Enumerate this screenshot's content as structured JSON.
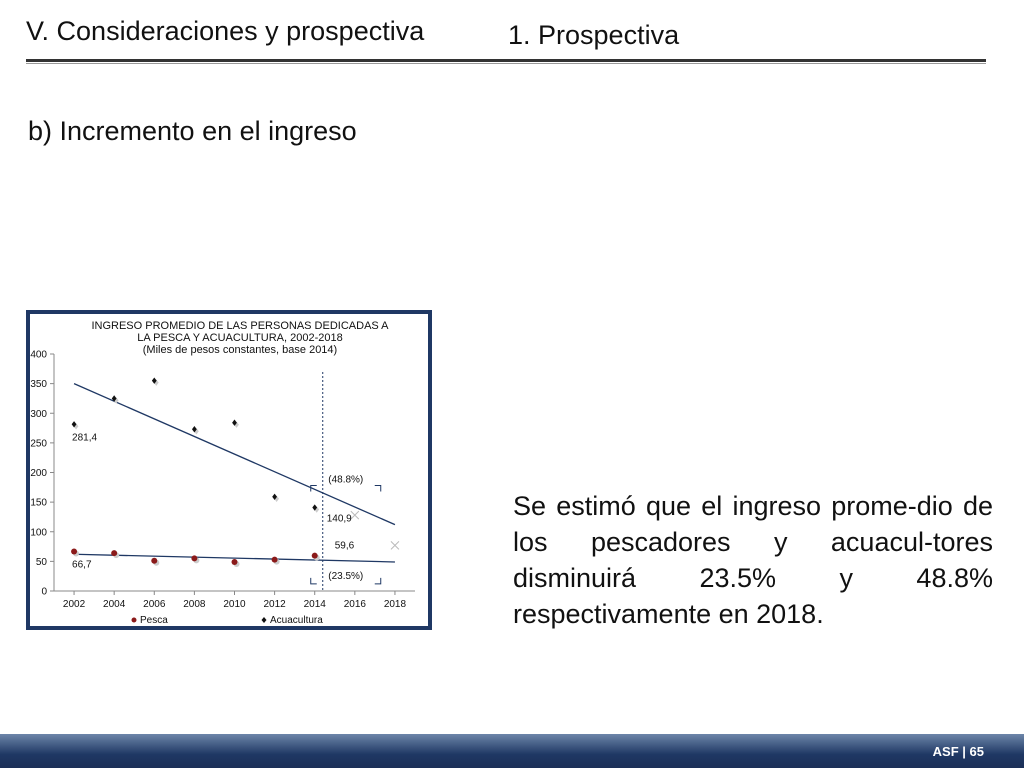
{
  "header": {
    "title": "V. Consideraciones y prospectiva",
    "subtitle": "1. Prospectiva"
  },
  "section": {
    "heading": "b) Incremento en el ingreso"
  },
  "body_text": "Se estimó que el ingreso prome-dio de los pescadores y acuacul-tores disminuirá 23.5% y 48.8% respectivamente en 2018.",
  "footer": {
    "label": "ASF | 65"
  },
  "colors": {
    "frame": "#1f3864",
    "pesca": "#8b1a1a",
    "acuacultura": "#111111",
    "trend": "#1f3864"
  },
  "chart_data": {
    "type": "scatter",
    "title_lines": [
      "INGRESO PROMEDIO DE LAS PERSONAS DEDICADAS A",
      "LA PESCA Y ACUACULTURA, 2002-2018",
      "(Miles  de pesos constantes, base 2014)"
    ],
    "x_ticks": [
      2002,
      2004,
      2006,
      2008,
      2010,
      2012,
      2014,
      2016,
      2018
    ],
    "y_ticks": [
      0,
      50,
      100,
      150,
      200,
      250,
      300,
      350,
      400
    ],
    "xlim": [
      2001,
      2019
    ],
    "ylim": [
      0,
      400
    ],
    "grid": false,
    "legend_position": "bottom",
    "series": [
      {
        "name": "Pesca",
        "marker": "circle",
        "points": [
          [
            2002,
            66.7
          ],
          [
            2004,
            64
          ],
          [
            2006,
            51
          ],
          [
            2008,
            55
          ],
          [
            2010,
            49
          ],
          [
            2012,
            53
          ],
          [
            2014,
            59.6
          ]
        ],
        "trend": [
          [
            2002,
            62
          ],
          [
            2018,
            49
          ]
        ],
        "projection": [
          2018,
          77
        ]
      },
      {
        "name": "Acuacultura",
        "marker": "diamond",
        "points": [
          [
            2002,
            281.4
          ],
          [
            2004,
            325
          ],
          [
            2006,
            355
          ],
          [
            2008,
            273
          ],
          [
            2010,
            284
          ],
          [
            2012,
            159
          ],
          [
            2014,
            140.9
          ]
        ],
        "trend": [
          [
            2002,
            350
          ],
          [
            2018,
            112
          ]
        ],
        "projection": [
          2016,
          128
        ]
      }
    ],
    "data_labels": [
      {
        "text": "281,4",
        "x": 2002,
        "y": 281.4
      },
      {
        "text": "66,7",
        "x": 2002,
        "y": 66.7
      },
      {
        "text": "140,9",
        "x": 2014,
        "y": 140.9
      },
      {
        "text": "59,6",
        "x": 2014,
        "y": 59.6
      }
    ],
    "annotations": [
      {
        "text": "(48.8%)"
      },
      {
        "text": "(23.5%)"
      }
    ],
    "reference_line_x": 2014.4
  }
}
